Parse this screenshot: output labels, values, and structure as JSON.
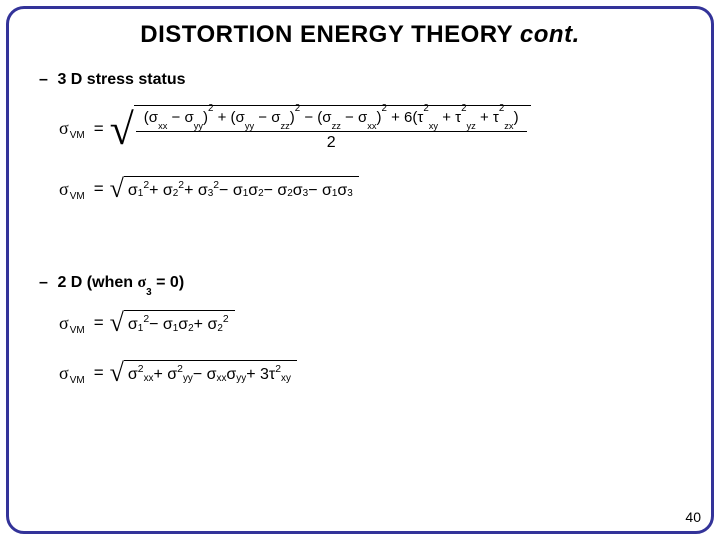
{
  "title_main": "DISTORTION ENERGY THEORY ",
  "title_cont": "cont.",
  "section_3d": "3 D stress status",
  "section_2d_prefix": "2 D (when ",
  "section_2d_sigma": "σ",
  "section_2d_sub": "3",
  "section_2d_suffix": " = 0)",
  "page_number": "40",
  "colors": {
    "frame_border": "#333399",
    "background": "#ffffff",
    "text": "#000000"
  },
  "symbols": {
    "sigma": "σ",
    "tau": "τ",
    "vm": "VM"
  },
  "equations": {
    "eq1": {
      "type": "sqrt-fraction",
      "numerator_terms": [
        "(σ_xx − σ_yy)^2",
        "+ (σ_yy − σ_zz)^2",
        "− (σ_zz − σ_xx)^2",
        "+ 6(τ_xy^2 + τ_yz^2 + τ_zx^2)"
      ],
      "denominator": "2"
    },
    "eq2": {
      "type": "sqrt",
      "terms": [
        "σ_1^2",
        "+ σ_2^2",
        "+ σ_3^2",
        "− σ_1σ_2",
        "− σ_2σ_3",
        "− σ_1σ_3"
      ]
    },
    "eq3": {
      "type": "sqrt",
      "terms": [
        "σ_1^2",
        "− σ_1σ_2",
        "+ σ_2^2"
      ]
    },
    "eq4": {
      "type": "sqrt",
      "terms": [
        "σ_xx^2",
        "+ σ_yy^2",
        "− σ_xxσ_yy",
        "+ 3τ_xy^2"
      ]
    }
  }
}
